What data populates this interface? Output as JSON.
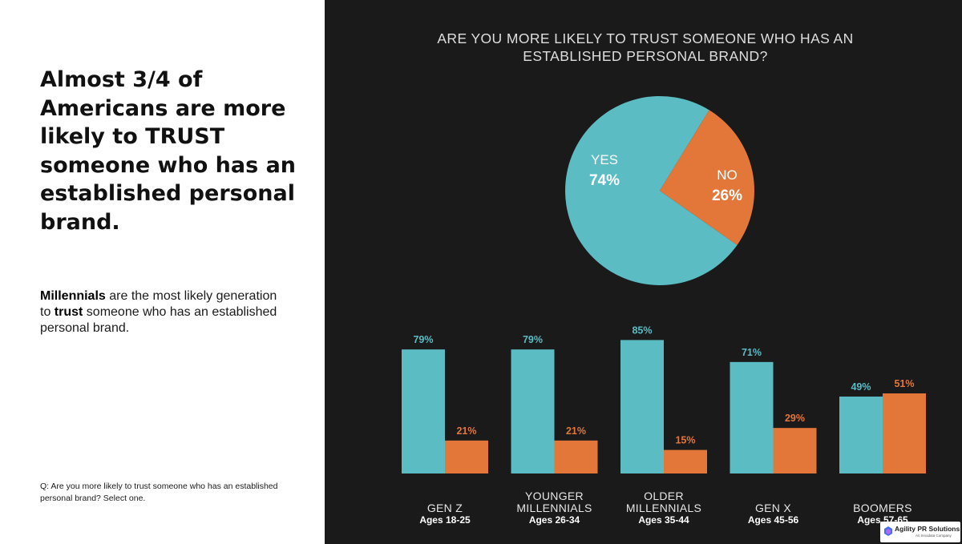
{
  "headline": "Almost 3/4 of Americans are more likely to TRUST someone who has an established personal brand.",
  "subtext": {
    "bold1": "Millennials",
    "part1": " are the most likely generation to ",
    "bold2": "trust",
    "part2": " someone who has an established personal brand."
  },
  "question_note": "Q: Are you more likely to trust someone who has an established personal brand? Select one.",
  "logo": {
    "name": "Agility PR Solutions",
    "sub": "An Innodata Company"
  },
  "colors": {
    "yes": "#5bbcc4",
    "no": "#e3773a",
    "background": "#1a1a1a"
  },
  "chart_data": [
    {
      "type": "pie",
      "title": "ARE YOU MORE LIKELY TO TRUST SOMEONE WHO HAS AN ESTABLISHED PERSONAL BRAND?",
      "slices": [
        {
          "label": "YES",
          "value": 74,
          "display": "74%"
        },
        {
          "label": "NO",
          "value": 26,
          "display": "26%"
        }
      ]
    },
    {
      "type": "bar",
      "categories": [
        {
          "name": [
            "GEN Z"
          ],
          "ages": "Ages 18-25"
        },
        {
          "name": [
            "YOUNGER",
            "MILLENNIALS"
          ],
          "ages": "Ages 26-34"
        },
        {
          "name": [
            "OLDER",
            "MILLENNIALS"
          ],
          "ages": "Ages 35-44"
        },
        {
          "name": [
            "GEN X"
          ],
          "ages": "Ages 45-56"
        },
        {
          "name": [
            "BOOMERS"
          ],
          "ages": "Ages 57-65"
        }
      ],
      "series": [
        {
          "values": [
            79,
            79,
            85,
            71,
            49
          ],
          "labels": [
            "79%",
            "79%",
            "85%",
            "71%",
            "49%"
          ]
        },
        {
          "values": [
            21,
            21,
            15,
            29,
            51
          ],
          "labels": [
            "21%",
            "21%",
            "15%",
            "29%",
            "51%"
          ]
        }
      ],
      "ylim": [
        0,
        100
      ]
    }
  ]
}
